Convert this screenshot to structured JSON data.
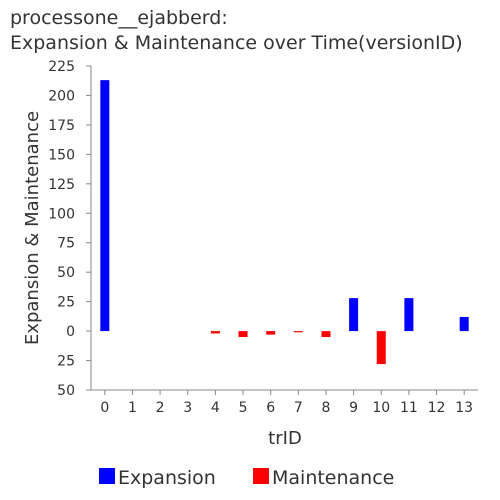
{
  "chart_data": {
    "type": "bar",
    "title": "processone__ejabberd:",
    "subtitle": "Expansion & Maintenance over Time(versionID)",
    "xlabel": "trID",
    "ylabel": "Expansion & Maintenance",
    "categories": [
      "0",
      "1",
      "2",
      "3",
      "4",
      "5",
      "6",
      "7",
      "8",
      "9",
      "10",
      "11",
      "12",
      "13"
    ],
    "series": [
      {
        "name": "Expansion",
        "color": "#0000ff",
        "values": [
          213,
          0,
          0,
          0,
          0,
          0,
          0,
          0,
          0,
          28,
          0,
          28,
          0,
          12
        ]
      },
      {
        "name": "Maintenance",
        "color": "#ff0000",
        "values": [
          0,
          0,
          0,
          0,
          -2,
          -5,
          -3,
          -1,
          -5,
          0,
          -28,
          0,
          0,
          0
        ]
      }
    ],
    "ylim": [
      -50,
      225
    ],
    "yticks": [
      -50,
      -25,
      0,
      25,
      50,
      75,
      100,
      125,
      150,
      175,
      200,
      225
    ],
    "ytick_labels": [
      "50",
      "25",
      "0",
      "25",
      "50",
      "75",
      "100",
      "125",
      "150",
      "175",
      "200",
      "225"
    ],
    "grid": false,
    "legend_position": "bottom"
  }
}
